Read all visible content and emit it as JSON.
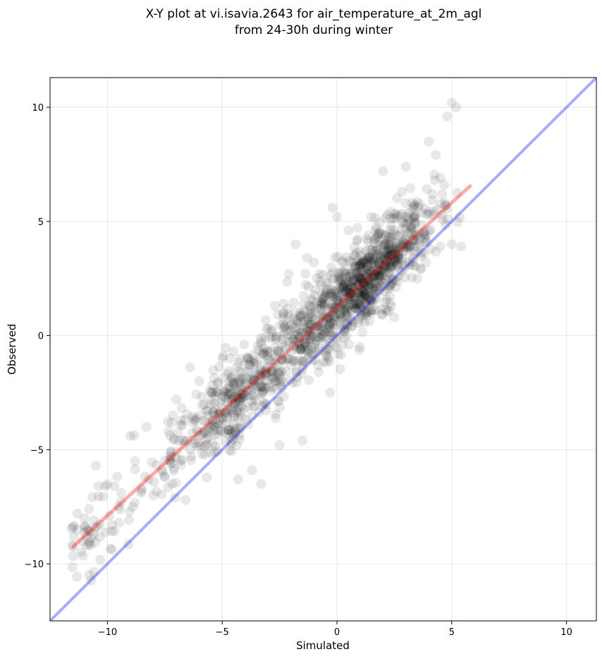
{
  "chart_data": {
    "type": "scatter",
    "title_lines": [
      "X-Y plot at vi.isavia.2643 for air_temperature_at_2m_agl",
      "from 24-30h during winter"
    ],
    "xlabel": "Simulated",
    "ylabel": "Observed",
    "xlim": [
      -12.5,
      11.3
    ],
    "ylim": [
      -12.5,
      11.3
    ],
    "xticks": [
      -10,
      -5,
      0,
      5,
      10
    ],
    "yticks": [
      -10,
      -5,
      0,
      5,
      10
    ],
    "xtick_labels": [
      "−10",
      "−5",
      "0",
      "5",
      "10"
    ],
    "ytick_labels": [
      "−10",
      "−5",
      "0",
      "5",
      "10"
    ],
    "grid": true,
    "point_color": "#000000",
    "point_alpha": 0.09,
    "identity_line": {
      "from": [
        -12.5,
        -12.5
      ],
      "to": [
        11.3,
        11.3
      ],
      "color": "#0000ff"
    },
    "fit_line": {
      "from": [
        -11.5,
        -9.25
      ],
      "to": [
        5.8,
        6.55
      ],
      "color": "#ff0000"
    },
    "point_cloud": {
      "slope": 0.913,
      "intercept": 1.25,
      "x_range": [
        -11.6,
        5.6
      ],
      "count": 1400,
      "residual_sd": 0.95
    },
    "points": [
      [
        -11.5,
        -8.4
      ],
      [
        -11.3,
        -8.5
      ],
      [
        -11.0,
        -8.0
      ],
      [
        -10.8,
        -7.6
      ],
      [
        -10.6,
        -8.1
      ],
      [
        -10.5,
        -5.7
      ],
      [
        -10.4,
        -6.6
      ],
      [
        -10.1,
        -6.6
      ],
      [
        -9.9,
        -7.9
      ],
      [
        -9.8,
        -8.3
      ],
      [
        -9.7,
        -6.6
      ],
      [
        -9.5,
        -8.2
      ],
      [
        -9.4,
        -6.9
      ],
      [
        -9.0,
        -4.4
      ],
      [
        -8.9,
        -7.5
      ],
      [
        -8.8,
        -5.5
      ],
      [
        -8.5,
        -6.8
      ],
      [
        -8.3,
        -4.0
      ],
      [
        -8.0,
        -7.0
      ],
      [
        -7.5,
        -6.2
      ],
      [
        -7.0,
        -2.8
      ],
      [
        -6.6,
        -7.2
      ],
      [
        -6.4,
        -1.4
      ],
      [
        -6.0,
        -2.0
      ],
      [
        -5.0,
        -1.0
      ],
      [
        -4.5,
        -0.7
      ],
      [
        -4.3,
        -6.3
      ],
      [
        -3.7,
        -5.9
      ],
      [
        -3.3,
        -6.5
      ],
      [
        -2.7,
        1.3
      ],
      [
        -2.5,
        -4.8
      ],
      [
        -2.1,
        2.7
      ],
      [
        -1.8,
        4.0
      ],
      [
        -1.5,
        -4.6
      ],
      [
        -1.3,
        3.4
      ],
      [
        -1.0,
        3.2
      ],
      [
        -0.8,
        -1.6
      ],
      [
        -0.5,
        2.0
      ],
      [
        -0.3,
        -2.5
      ],
      [
        -0.2,
        5.6
      ],
      [
        0.0,
        5.2
      ],
      [
        0.5,
        4.6
      ],
      [
        1.0,
        -0.5
      ],
      [
        1.5,
        5.2
      ],
      [
        2.0,
        7.2
      ],
      [
        2.5,
        0.8
      ],
      [
        3.0,
        7.4
      ],
      [
        3.5,
        2.5
      ],
      [
        4.0,
        8.5
      ],
      [
        4.5,
        3.9
      ],
      [
        4.8,
        9.6
      ],
      [
        5.0,
        10.2
      ],
      [
        5.2,
        10.0
      ],
      [
        5.4,
        3.9
      ],
      [
        5.0,
        4.0
      ]
    ]
  }
}
